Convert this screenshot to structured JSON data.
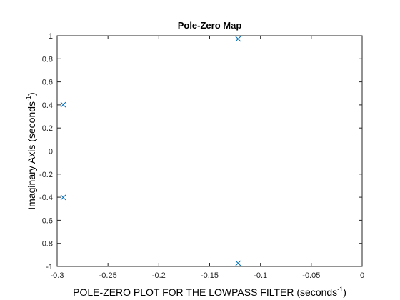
{
  "chart_data": {
    "type": "scatter",
    "title": "Pole-Zero Map",
    "xlabel": {
      "main": "POLE-ZERO PLOT FOR THE LOWPASS FILTER (seconds",
      "sup": "-1",
      "close": ")"
    },
    "ylabel": {
      "main": "Imaginary Axis (seconds",
      "sup": "-1",
      "close": ")"
    },
    "xlim": [
      -0.3,
      0
    ],
    "ylim": [
      -1,
      1
    ],
    "xticks": [
      "-0.3",
      "-0.25",
      "-0.2",
      "-0.15",
      "-0.1",
      "-0.05",
      "0"
    ],
    "yticks": [
      "-1",
      "-0.8",
      "-0.6",
      "-0.4",
      "-0.2",
      "0",
      "0.2",
      "0.4",
      "0.6",
      "0.8",
      "1"
    ],
    "grid": false,
    "marker": "x",
    "marker_color": "#0072BD",
    "zero_line": "dotted",
    "points": [
      {
        "x": -0.122,
        "y": 0.972
      },
      {
        "x": -0.122,
        "y": -0.972
      },
      {
        "x": -0.294,
        "y": 0.402
      },
      {
        "x": -0.294,
        "y": -0.402
      }
    ]
  }
}
